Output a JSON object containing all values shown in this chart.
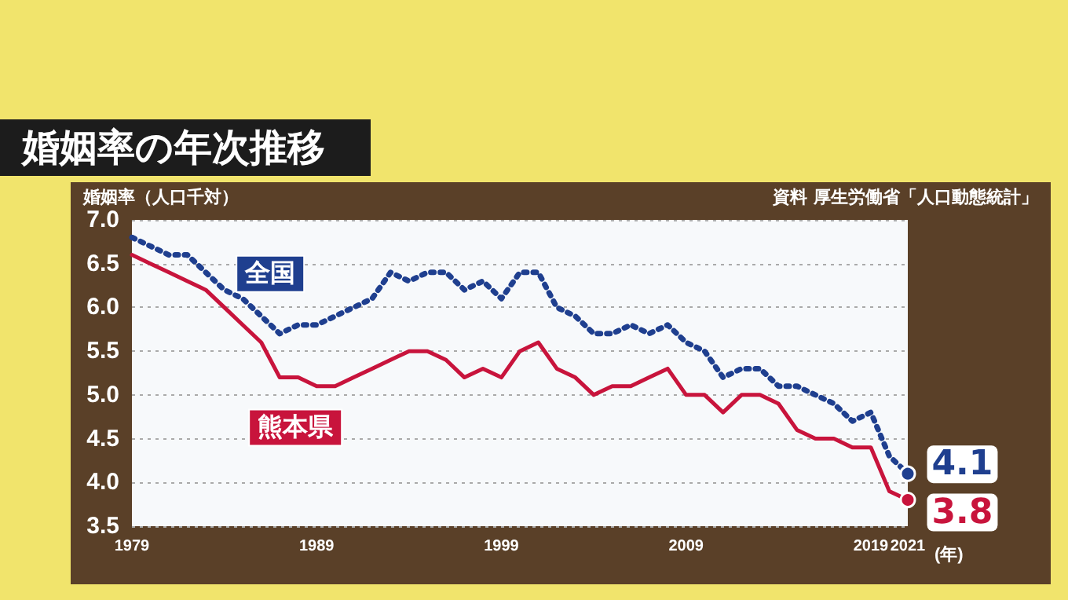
{
  "chart_data": {
    "type": "line",
    "title": "婚姻率の年次推移",
    "ylabel": "婚姻率（人口千対）",
    "xlabel": "(年)",
    "annotations": [
      "資料 厚生労働省「人口動態統計」"
    ],
    "x": [
      1979,
      1980,
      1981,
      1982,
      1983,
      1984,
      1985,
      1986,
      1987,
      1988,
      1989,
      1990,
      1991,
      1992,
      1993,
      1994,
      1995,
      1996,
      1997,
      1998,
      1999,
      2000,
      2001,
      2002,
      2003,
      2004,
      2005,
      2006,
      2007,
      2008,
      2009,
      2010,
      2011,
      2012,
      2013,
      2014,
      2015,
      2016,
      2017,
      2018,
      2019,
      2020,
      2021
    ],
    "series": [
      {
        "name": "全国",
        "color": "#1f3f8f",
        "line_style": "dotted",
        "values": [
          6.8,
          6.7,
          6.6,
          6.6,
          6.4,
          6.2,
          6.1,
          5.9,
          5.7,
          5.8,
          5.8,
          5.9,
          6.0,
          6.1,
          6.4,
          6.3,
          6.4,
          6.4,
          6.2,
          6.3,
          6.1,
          6.4,
          6.4,
          6.0,
          5.9,
          5.7,
          5.7,
          5.8,
          5.7,
          5.8,
          5.6,
          5.5,
          5.2,
          5.3,
          5.3,
          5.1,
          5.1,
          5.0,
          4.9,
          4.7,
          4.8,
          4.3,
          4.1
        ],
        "value_labels": [
          null,
          null,
          null,
          null,
          null,
          null,
          null,
          null,
          null,
          null,
          null,
          null,
          null,
          null,
          null,
          null,
          null,
          null,
          null,
          null,
          null,
          null,
          null,
          null,
          null,
          null,
          null,
          null,
          null,
          null,
          null,
          null,
          null,
          null,
          null,
          null,
          null,
          null,
          null,
          null,
          null,
          null,
          "4.1"
        ]
      },
      {
        "name": "熊本県",
        "color": "#c8143c",
        "line_style": "solid",
        "values": [
          6.6,
          6.5,
          6.4,
          6.3,
          6.2,
          6.0,
          5.8,
          5.6,
          5.2,
          5.2,
          5.1,
          5.1,
          5.2,
          5.3,
          5.4,
          5.5,
          5.5,
          5.4,
          5.2,
          5.3,
          5.2,
          5.5,
          5.6,
          5.3,
          5.2,
          5.0,
          5.1,
          5.1,
          5.2,
          5.3,
          5.0,
          5.0,
          4.8,
          5.0,
          5.0,
          4.9,
          4.6,
          4.5,
          4.5,
          4.4,
          4.4,
          3.9,
          3.8
        ],
        "value_labels": [
          null,
          null,
          null,
          null,
          null,
          null,
          null,
          null,
          null,
          null,
          null,
          null,
          null,
          null,
          null,
          null,
          null,
          null,
          null,
          null,
          null,
          null,
          null,
          null,
          null,
          null,
          null,
          null,
          null,
          null,
          null,
          null,
          null,
          null,
          null,
          null,
          null,
          null,
          null,
          null,
          null,
          null,
          "3.8"
        ]
      }
    ],
    "xlim": [
      1979,
      2021
    ],
    "xticks": [
      1979,
      1989,
      1999,
      2009,
      2019,
      2021
    ],
    "ylim": [
      3.5,
      7.0
    ],
    "yticks": [
      "3.5",
      "4.0",
      "4.5",
      "5.0",
      "5.5",
      "6.0",
      "6.5",
      "7.0"
    ],
    "grid": "y",
    "legend": false,
    "marker": "none"
  }
}
